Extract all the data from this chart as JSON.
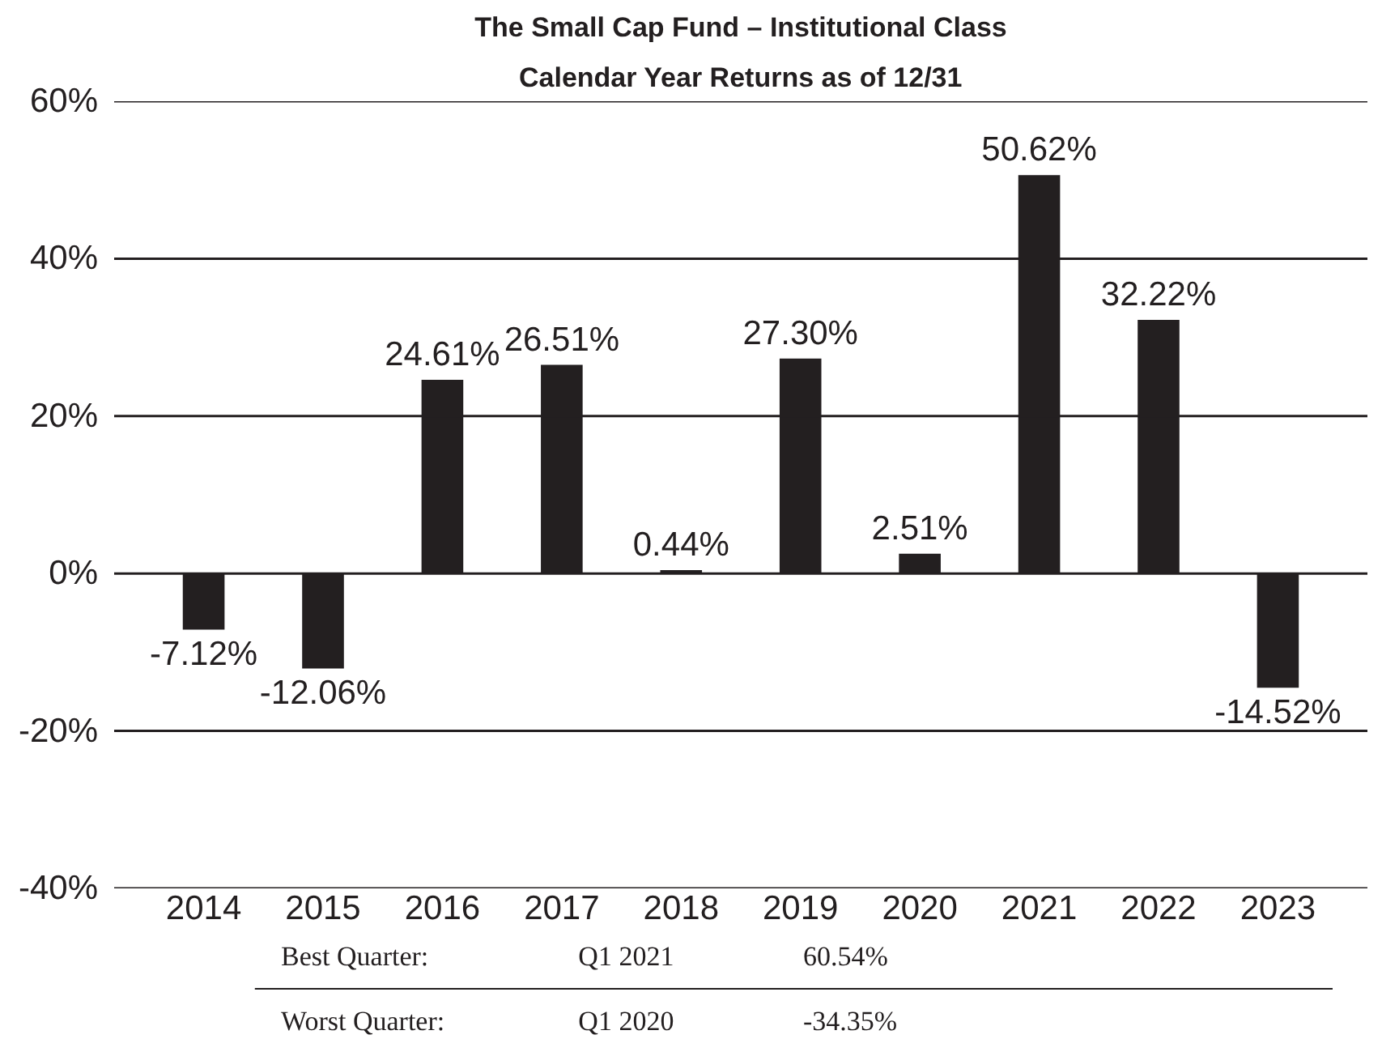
{
  "chart_data": {
    "type": "bar",
    "title": "The Small Cap Fund – Institutional Class",
    "subtitle": "Calendar Year Returns as of 12/31",
    "categories": [
      "2014",
      "2015",
      "2016",
      "2017",
      "2018",
      "2019",
      "2020",
      "2021",
      "2022",
      "2023"
    ],
    "values": [
      -7.12,
      -12.06,
      24.61,
      26.51,
      0.44,
      27.3,
      2.51,
      50.62,
      32.22,
      -14.52
    ],
    "value_labels": [
      "-7.12%",
      "-12.06%",
      "24.61%",
      "26.51%",
      "0.44%",
      "27.30%",
      "2.51%",
      "50.62%",
      "32.22%",
      "-14.52%"
    ],
    "color": "#231f20",
    "ylim": [
      -40,
      60
    ],
    "yticks": [
      {
        "value": -40,
        "label": "-40%"
      },
      {
        "value": -20,
        "label": "-20%"
      },
      {
        "value": 0,
        "label": "0%"
      },
      {
        "value": 20,
        "label": "20%"
      },
      {
        "value": 40,
        "label": "40%"
      },
      {
        "value": 60,
        "label": "60%"
      }
    ],
    "grid": "y",
    "annotations": [
      "Best Quarter:",
      "Q1 2021",
      "60.54%",
      "Worst Quarter:",
      "Q1 2020",
      "-34.35%"
    ]
  }
}
